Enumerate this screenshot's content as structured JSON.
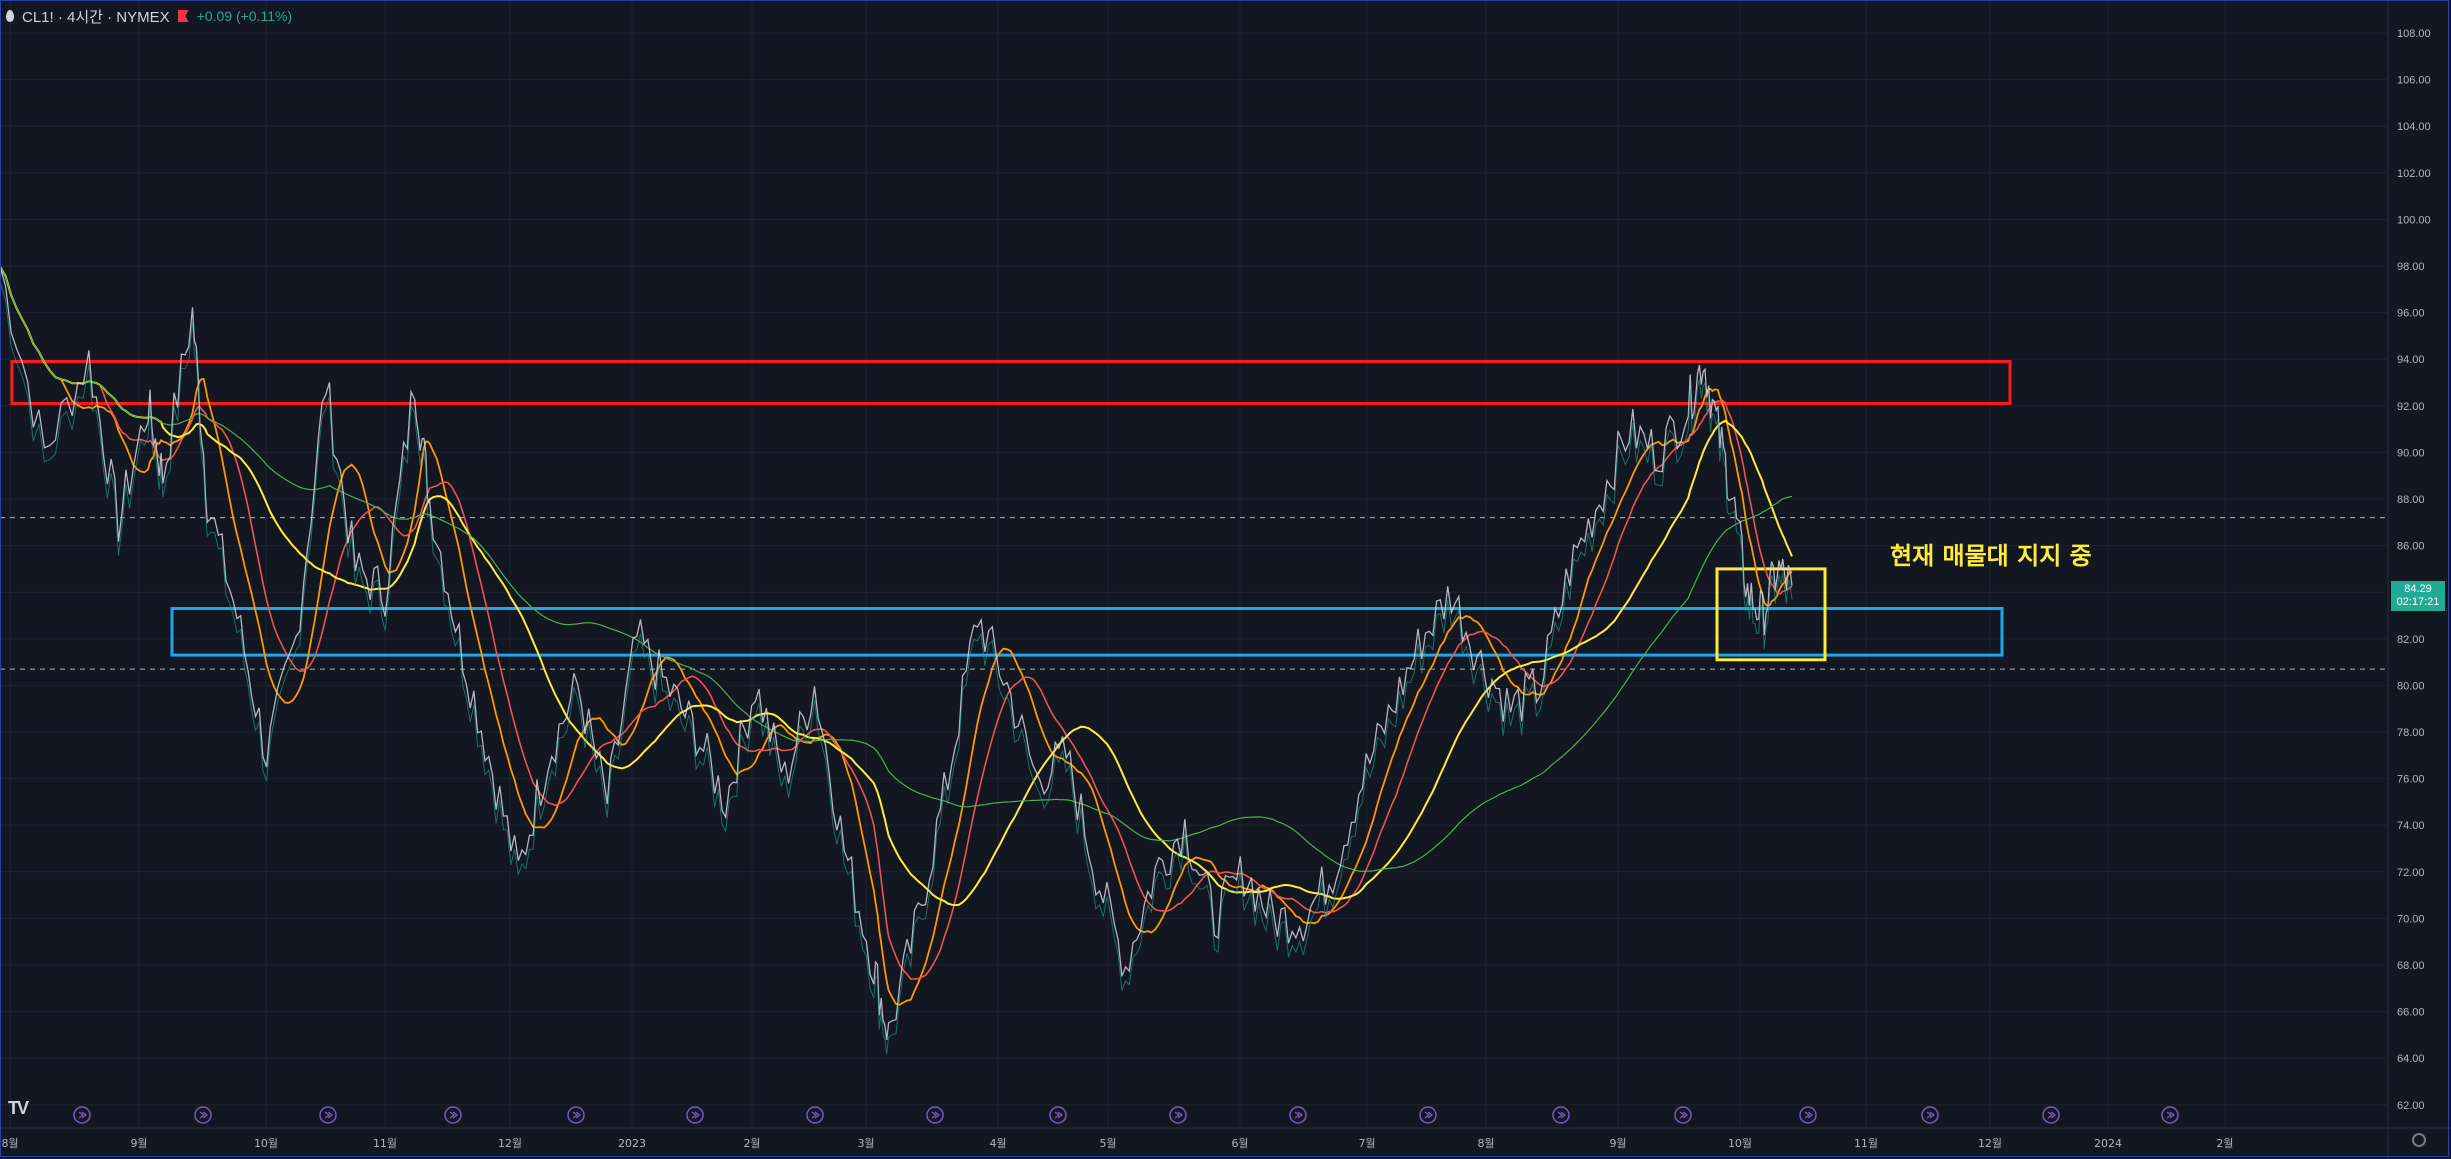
{
  "header": {
    "symbol_line": "CL1! · 4시간 · NYMEX",
    "change": "+0.09 (+0.11%)"
  },
  "annotation": "현재 매물대 지지 중",
  "last_price": {
    "price": "84.29",
    "countdown": "02:17:21"
  },
  "colors": {
    "background": "#131722",
    "resistance": "#ff1a1a",
    "support": "#1ea7e8",
    "highlight": "#ffeb3b",
    "ma_red": "#ef5350",
    "ma_orange": "#ff9800",
    "ma_yellow": "#ffeb3b",
    "ma_green": "#4caf50"
  },
  "chart_data": {
    "type": "line",
    "instrument": "CL1!",
    "y_ticks": [
      "108.00",
      "106.00",
      "104.00",
      "102.00",
      "100.00",
      "98.00",
      "96.00",
      "94.00",
      "92.00",
      "90.00",
      "88.00",
      "86.00",
      "84.00",
      "82.00",
      "80.00",
      "78.00",
      "76.00",
      "74.00",
      "72.00",
      "70.00",
      "68.00",
      "66.00",
      "64.00",
      "62.00"
    ],
    "x_ticks": [
      "8월",
      "9월",
      "10월",
      "11월",
      "12월",
      "2023",
      "2월",
      "3월",
      "4월",
      "5월",
      "6월",
      "7월",
      "8월",
      "9월",
      "10월",
      "11월",
      "12월",
      "2024",
      "2월"
    ],
    "ylim": [
      62,
      108
    ],
    "price_path": [
      [
        0,
        98
      ],
      [
        3,
        90
      ],
      [
        6,
        94
      ],
      [
        8,
        87
      ],
      [
        10,
        92
      ],
      [
        11,
        89
      ],
      [
        13,
        96
      ],
      [
        14,
        88
      ],
      [
        16,
        83
      ],
      [
        18,
        77
      ],
      [
        20,
        82
      ],
      [
        22,
        93
      ],
      [
        24,
        85
      ],
      [
        26,
        84
      ],
      [
        28,
        93
      ],
      [
        29,
        88
      ],
      [
        31,
        82
      ],
      [
        33,
        77
      ],
      [
        35,
        72
      ],
      [
        37,
        77
      ],
      [
        39,
        80
      ],
      [
        41,
        75
      ],
      [
        43,
        82
      ],
      [
        45,
        80
      ],
      [
        47,
        78
      ],
      [
        49,
        75
      ],
      [
        51,
        80
      ],
      [
        53,
        76
      ],
      [
        55,
        80
      ],
      [
        57,
        73
      ],
      [
        59,
        68
      ],
      [
        60,
        65
      ],
      [
        62,
        70
      ],
      [
        64,
        76
      ],
      [
        66,
        83
      ],
      [
        68,
        80
      ],
      [
        70,
        76
      ],
      [
        72,
        77
      ],
      [
        74,
        72
      ],
      [
        76,
        68
      ],
      [
        78,
        72
      ],
      [
        80,
        74
      ],
      [
        82,
        70
      ],
      [
        84,
        72
      ],
      [
        86,
        70
      ],
      [
        88,
        70
      ],
      [
        90,
        72
      ],
      [
        92,
        76
      ],
      [
        94,
        79
      ],
      [
        96,
        82
      ],
      [
        98,
        84
      ],
      [
        100,
        81
      ],
      [
        102,
        79
      ],
      [
        104,
        80
      ],
      [
        106,
        85
      ],
      [
        108,
        88
      ],
      [
        110,
        91
      ],
      [
        112,
        90
      ],
      [
        114,
        92
      ],
      [
        115,
        94
      ],
      [
        116,
        91
      ],
      [
        117,
        88
      ],
      [
        118,
        84
      ],
      [
        119,
        83
      ],
      [
        120,
        85
      ],
      [
        121,
        84.29
      ]
    ],
    "bars_total": 121,
    "zones": [
      {
        "name": "resistance",
        "from": 92.1,
        "to": 93.9
      },
      {
        "name": "support",
        "from": 81.3,
        "to": 83.3
      }
    ],
    "dashed_levels": [
      87.2,
      80.7
    ],
    "last_price": 84.29,
    "grid": true
  }
}
